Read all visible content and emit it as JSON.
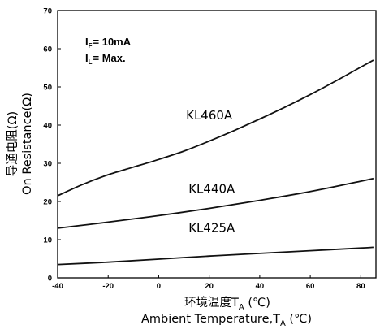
{
  "chart_data": {
    "type": "line",
    "title": "",
    "x_ticks": [
      -40,
      -20,
      0,
      20,
      40,
      60,
      80
    ],
    "y_ticks": [
      0,
      10,
      20,
      30,
      40,
      50,
      60,
      70
    ],
    "xlim": [
      -40,
      86
    ],
    "ylim": [
      0,
      70
    ],
    "grid": false,
    "conditions": {
      "if_main": "I",
      "if_sub": "F",
      "if_value": "= 10mA",
      "il_main": "I",
      "il_sub": "L",
      "il_value": "= Max."
    },
    "xlabel": {
      "line1_main": "环境温度T",
      "line1_sub": "A",
      "line1_unit": " (℃)",
      "line2_main": "Ambient Temperature,T",
      "line2_sub": "A",
      "line2_unit": " (℃)"
    },
    "ylabel": {
      "line1": "导通电阻(Ω)",
      "line2": "On Resistance(Ω)"
    },
    "series": [
      {
        "name": "KL460A",
        "label_pos": [
          20,
          41.5
        ],
        "x": [
          -40,
          -30,
          -20,
          -10,
          0,
          10,
          20,
          30,
          40,
          50,
          60,
          70,
          80,
          85
        ],
        "y": [
          21.5,
          24.5,
          27,
          29,
          31,
          33.2,
          35.8,
          38.6,
          41.6,
          44.7,
          48,
          51.5,
          55.2,
          57
        ]
      },
      {
        "name": "KL440A",
        "label_pos": [
          21,
          22.2
        ],
        "x": [
          -40,
          -20,
          0,
          20,
          40,
          60,
          80,
          85
        ],
        "y": [
          13,
          14.6,
          16.3,
          18.2,
          20.3,
          22.6,
          25.3,
          26
        ]
      },
      {
        "name": "KL425A",
        "label_pos": [
          21,
          12
        ],
        "x": [
          -40,
          -20,
          0,
          20,
          40,
          60,
          80,
          85
        ],
        "y": [
          3.5,
          4.1,
          4.9,
          5.7,
          6.4,
          7.1,
          7.8,
          8
        ]
      }
    ]
  }
}
